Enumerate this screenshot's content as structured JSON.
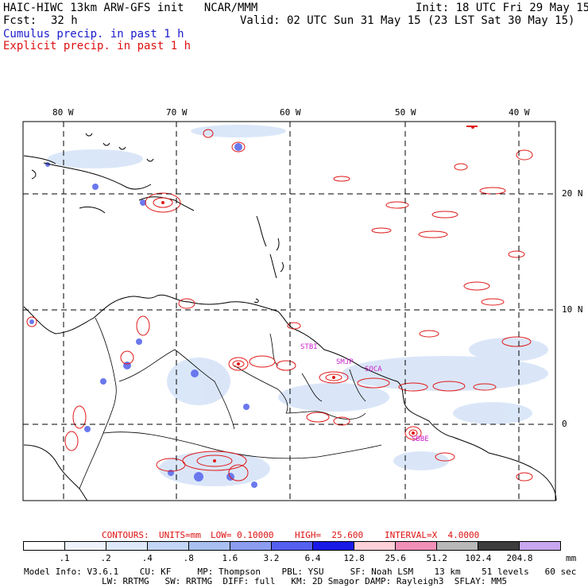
{
  "header": {
    "model_line": "HAIC-HIWC 13km ARW-GFS init   NCAR/MMM",
    "init_line": "Init: 18 UTC Fri 29 May 15",
    "fcst_label": "Fcst:",
    "fcst_value": "32 h",
    "valid_line": "Valid: 02 UTC Sun 31 May 15 (23 LST Sat 30 May 15)",
    "legend_cumulus": "Cumulus precip. in past 1 h",
    "legend_explicit": "Explicit precip. in past 1 h",
    "colors": {
      "cumulus": "#1a1acc",
      "explicit": "#dd1111"
    }
  },
  "map": {
    "lon_labels": [
      "80 W",
      "70 W",
      "60 W",
      "50 W",
      "40 W"
    ],
    "lat_labels": [
      "20 N",
      "10 N",
      "0"
    ],
    "stations": [
      "STBI",
      "SMJP",
      "SOCA",
      "SBBE"
    ]
  },
  "contours_line": {
    "prefix": "CONTOURS:",
    "units": "UNITS=mm",
    "low": "LOW= 0.10000",
    "high": "HIGH=  25.600",
    "interval": "INTERVAL=X  4.0000"
  },
  "colorbar": {
    "ticks": [
      ".1",
      ".2",
      ".4",
      ".8",
      "1.6",
      "3.2",
      "6.4",
      "12.8",
      "25.6",
      "51.2",
      "102.4",
      "204.8"
    ],
    "unit": "mm",
    "colors": [
      "#ffffff",
      "#eef3fb",
      "#dde8f8",
      "#c4d6f5",
      "#a9bff0",
      "#8c9df0",
      "#5560f0",
      "#1a1ae6",
      "#ffd0d8",
      "#f090b8",
      "#b8b8b8",
      "#3c3c3c",
      "#c8a6f0"
    ]
  },
  "footer": {
    "line1": "Model Info: V3.6.1    CU: KF     MP: Thompson    PBL: YSU     SF: Noah LSM    13 km    51 levels   60 sec",
    "line2": "LW: RRTMG   SW: RRTMG  DIFF: full   KM: 2D Smagor DAMP: Rayleigh3  SFLAY: MM5"
  }
}
